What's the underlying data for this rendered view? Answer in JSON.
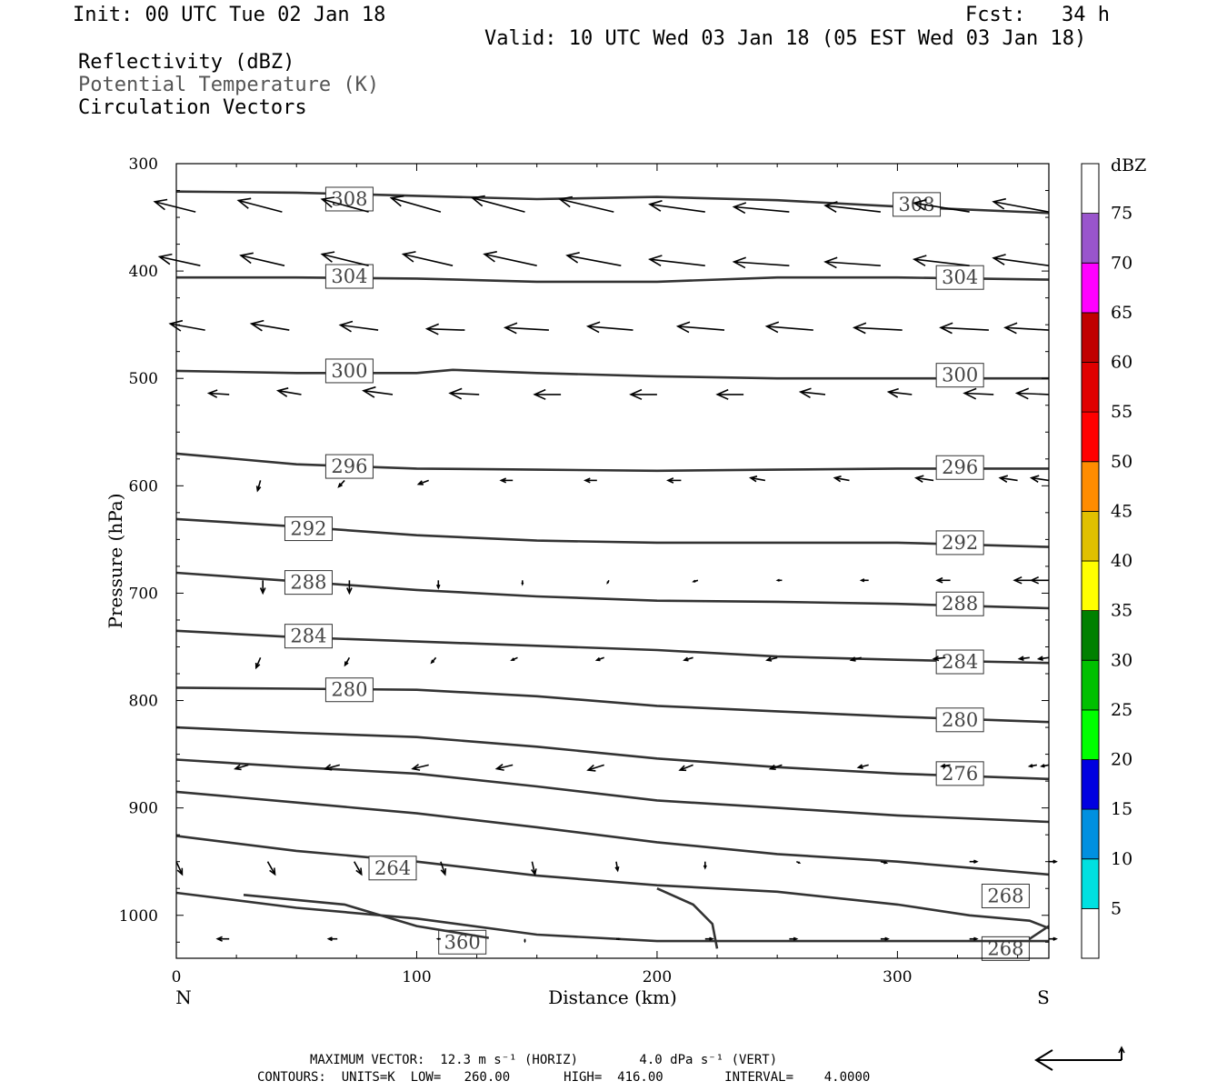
{
  "header": {
    "init": "Init: 00 UTC Tue 02 Jan 18",
    "fcst": "Fcst:   34 h",
    "valid": "Valid: 10 UTC Wed 03 Jan 18 (05 EST Wed 03 Jan 18)",
    "fields": [
      "Reflectivity (dBZ)",
      "Potential Temperature (K)",
      "Circulation Vectors"
    ]
  },
  "footer": {
    "line1": "MAXIMUM VECTOR:  12.3 m s⁻¹ (HORIZ)        4.0 dPa s⁻¹ (VERT)",
    "line2": "CONTOURS:  UNITS=K  LOW=   260.00       HIGH=  416.00        INTERVAL=    4.0000"
  },
  "chart_data": {
    "type": "line",
    "title": "",
    "xlabel": "Distance (km)",
    "ylabel": "Pressure (hPa)",
    "xlim": [
      0,
      363
    ],
    "ylim": [
      300,
      1040
    ],
    "y_inverted": true,
    "x_ticks": [
      0,
      100,
      200,
      300
    ],
    "y_ticks": [
      300,
      400,
      500,
      600,
      700,
      800,
      900,
      1000
    ],
    "x_end_labels": {
      "left": "N",
      "right": "S"
    },
    "colorbar": {
      "title": "dBZ",
      "tick_labels": [
        "5",
        "10",
        "15",
        "20",
        "25",
        "30",
        "35",
        "40",
        "45",
        "50",
        "55",
        "60",
        "65",
        "70",
        "75"
      ],
      "colors": [
        "#ffffff",
        "#00e0e0",
        "#0090e0",
        "#0000e0",
        "#00ff00",
        "#00c000",
        "#008000",
        "#ffff00",
        "#e0c000",
        "#ff8c00",
        "#ff0000",
        "#e00000",
        "#c00000",
        "#ff00ff",
        "#9955cc",
        "#ffffff"
      ]
    },
    "contours": [
      {
        "label": "308",
        "points": [
          [
            0,
            326
          ],
          [
            50,
            327
          ],
          [
            100,
            330
          ],
          [
            150,
            333
          ],
          [
            200,
            331
          ],
          [
            250,
            334
          ],
          [
            300,
            340
          ],
          [
            363,
            346
          ]
        ],
        "label_positions": [
          [
            72,
            333
          ],
          [
            308,
            338
          ]
        ]
      },
      {
        "label": "304",
        "points": [
          [
            0,
            406
          ],
          [
            50,
            406
          ],
          [
            100,
            407
          ],
          [
            150,
            410
          ],
          [
            200,
            410
          ],
          [
            250,
            406
          ],
          [
            300,
            406
          ],
          [
            363,
            408
          ]
        ],
        "label_positions": [
          [
            72,
            405
          ],
          [
            326,
            406
          ]
        ]
      },
      {
        "label": "300",
        "points": [
          [
            0,
            493
          ],
          [
            50,
            495
          ],
          [
            100,
            495
          ],
          [
            115,
            492
          ],
          [
            150,
            495
          ],
          [
            200,
            498
          ],
          [
            250,
            500
          ],
          [
            300,
            500
          ],
          [
            363,
            500
          ]
        ],
        "label_positions": [
          [
            72,
            493
          ],
          [
            326,
            497
          ]
        ]
      },
      {
        "label": "296",
        "points": [
          [
            0,
            570
          ],
          [
            50,
            580
          ],
          [
            100,
            584
          ],
          [
            150,
            585
          ],
          [
            200,
            586
          ],
          [
            250,
            585
          ],
          [
            300,
            584
          ],
          [
            363,
            584
          ]
        ],
        "label_positions": [
          [
            72,
            582
          ],
          [
            326,
            583
          ]
        ]
      },
      {
        "label": "292",
        "points": [
          [
            0,
            631
          ],
          [
            50,
            638
          ],
          [
            100,
            646
          ],
          [
            150,
            651
          ],
          [
            200,
            653
          ],
          [
            250,
            653
          ],
          [
            300,
            653
          ],
          [
            363,
            657
          ]
        ],
        "label_positions": [
          [
            55,
            640
          ],
          [
            326,
            653
          ]
        ]
      },
      {
        "label": "288",
        "points": [
          [
            0,
            681
          ],
          [
            50,
            689
          ],
          [
            100,
            697
          ],
          [
            150,
            703
          ],
          [
            200,
            707
          ],
          [
            250,
            708
          ],
          [
            300,
            710
          ],
          [
            363,
            714
          ]
        ],
        "label_positions": [
          [
            55,
            690
          ],
          [
            326,
            710
          ]
        ]
      },
      {
        "label": "284",
        "points": [
          [
            0,
            735
          ],
          [
            50,
            741
          ],
          [
            100,
            745
          ],
          [
            150,
            749
          ],
          [
            200,
            753
          ],
          [
            250,
            759
          ],
          [
            300,
            762
          ],
          [
            363,
            765
          ]
        ],
        "label_positions": [
          [
            55,
            740
          ],
          [
            326,
            764
          ]
        ]
      },
      {
        "label": "280",
        "points": [
          [
            0,
            788
          ],
          [
            50,
            789
          ],
          [
            100,
            790
          ],
          [
            150,
            796
          ],
          [
            200,
            805
          ],
          [
            250,
            810
          ],
          [
            300,
            815
          ],
          [
            363,
            820
          ]
        ],
        "label_positions": [
          [
            72,
            790
          ],
          [
            326,
            818
          ]
        ]
      },
      {
        "label": "",
        "points": [
          [
            0,
            825
          ],
          [
            50,
            830
          ],
          [
            100,
            834
          ],
          [
            150,
            843
          ],
          [
            200,
            854
          ],
          [
            250,
            862
          ],
          [
            300,
            868
          ],
          [
            363,
            873
          ]
        ],
        "label_positions": []
      },
      {
        "label": "276",
        "points": [
          [
            0,
            855
          ],
          [
            50,
            862
          ],
          [
            100,
            868
          ],
          [
            150,
            880
          ],
          [
            200,
            893
          ],
          [
            250,
            900
          ],
          [
            300,
            907
          ],
          [
            363,
            913
          ]
        ],
        "label_positions": [
          [
            326,
            868
          ]
        ]
      },
      {
        "label": "",
        "points": [
          [
            0,
            885
          ],
          [
            50,
            895
          ],
          [
            100,
            905
          ],
          [
            150,
            918
          ],
          [
            200,
            932
          ],
          [
            250,
            943
          ],
          [
            300,
            950
          ],
          [
            363,
            962
          ]
        ],
        "label_positions": []
      },
      {
        "label": "264",
        "points": [
          [
            0,
            926
          ],
          [
            50,
            940
          ],
          [
            100,
            950
          ],
          [
            150,
            963
          ],
          [
            200,
            972
          ],
          [
            250,
            978
          ],
          [
            300,
            990
          ],
          [
            330,
            1000
          ],
          [
            355,
            1005
          ],
          [
            363,
            1012
          ]
        ],
        "label_positions": [
          [
            90,
            956
          ]
        ]
      },
      {
        "label": "268",
        "points": [
          [
            345,
            1040
          ],
          [
            355,
            1022
          ],
          [
            363,
            1010
          ]
        ],
        "label_positions": [
          [
            345,
            982
          ],
          [
            345,
            1031
          ]
        ]
      },
      {
        "label": "360",
        "points": [
          [
            0,
            979
          ],
          [
            50,
            993
          ],
          [
            100,
            1003
          ],
          [
            150,
            1018
          ],
          [
            200,
            1024
          ],
          [
            250,
            1024
          ],
          [
            300,
            1024
          ],
          [
            363,
            1024
          ]
        ],
        "label_positions": [
          [
            119,
            1025
          ]
        ]
      },
      {
        "label": "",
        "points": [
          [
            28,
            981
          ],
          [
            70,
            990
          ],
          [
            100,
            1010
          ],
          [
            130,
            1021
          ]
        ],
        "label_positions": []
      },
      {
        "label": "",
        "points": [
          [
            200,
            975
          ],
          [
            215,
            990
          ],
          [
            223,
            1008
          ],
          [
            225,
            1031
          ]
        ],
        "label_positions": []
      }
    ],
    "vectors": [
      {
        "p": 345,
        "x": [
          8,
          44,
          80,
          110,
          145,
          182,
          220,
          255,
          293,
          330,
          363
        ],
        "u": [
          -28,
          -30,
          -32,
          -34,
          -36,
          -37,
          -38,
          -38,
          -38,
          -38,
          -38
        ],
        "w": [
          0.8,
          0.9,
          1.0,
          1.1,
          1.1,
          1.0,
          0.6,
          0.4,
          0.5,
          0.7,
          0.8
        ]
      },
      {
        "p": 395,
        "x": [
          10,
          45,
          80,
          115,
          150,
          185,
          220,
          255,
          293,
          330,
          363
        ],
        "u": [
          -28,
          -30,
          -32,
          -34,
          -36,
          -37,
          -38,
          -38,
          -38,
          -38,
          -38
        ],
        "w": [
          0.7,
          0.8,
          0.9,
          0.9,
          0.9,
          0.8,
          0.5,
          0.3,
          0.3,
          0.5,
          0.6
        ]
      },
      {
        "p": 455,
        "x": [
          12,
          47,
          84,
          120,
          155,
          190,
          228,
          265,
          302,
          338,
          363
        ],
        "u": [
          -24,
          -26,
          -26,
          -26,
          -30,
          -31,
          -32,
          -32,
          -33,
          -33,
          -30
        ],
        "w": [
          0.5,
          0.5,
          0.4,
          0.1,
          0.2,
          0.3,
          0.3,
          0.3,
          0.2,
          0.2,
          0.2
        ]
      },
      {
        "p": 515,
        "x": [
          22,
          52,
          90,
          126,
          160,
          200,
          236,
          270,
          306,
          340,
          363
        ],
        "u": [
          -14,
          -16,
          -20,
          -20,
          -18,
          -18,
          -18,
          -17,
          -16,
          -20,
          -22
        ],
        "w": [
          0.1,
          0.3,
          0.3,
          0.1,
          0.0,
          0.0,
          0.0,
          0.2,
          0.2,
          0.1,
          0.1
        ]
      },
      {
        "p": 595,
        "x": [
          35,
          70,
          105,
          140,
          175,
          210,
          245,
          280,
          315,
          350,
          363
        ],
        "u": [
          -2,
          -4,
          -7,
          -8,
          -8,
          -9,
          -10,
          -10,
          -12,
          -12,
          -12
        ],
        "w": [
          -0.8,
          -0.5,
          -0.3,
          0.0,
          0.0,
          0.0,
          0.2,
          0.2,
          0.2,
          0.2,
          0.2
        ]
      },
      {
        "p": 688,
        "x": [
          36,
          72,
          109,
          144,
          180,
          217,
          252,
          288,
          322,
          356,
          363
        ],
        "u": [
          0,
          0,
          0,
          0,
          -1,
          -3,
          -3,
          -5,
          -9,
          -12,
          -12
        ],
        "w": [
          -1.0,
          -1.0,
          -0.6,
          -0.3,
          -0.2,
          -0.1,
          0.0,
          0.0,
          0.0,
          0.0,
          0.0
        ]
      },
      {
        "p": 760,
        "x": [
          35,
          72,
          108,
          142,
          178,
          215,
          250,
          285,
          320,
          355,
          363
        ],
        "u": [
          -3,
          -3,
          -3,
          -4,
          -5,
          -6,
          -7,
          -7,
          -8,
          -7,
          -7
        ],
        "w": [
          -0.8,
          -0.6,
          -0.4,
          -0.2,
          -0.2,
          -0.2,
          -0.2,
          -0.2,
          -0.1,
          -0.1,
          -0.1
        ]
      },
      {
        "p": 860,
        "x": [
          30,
          68,
          105,
          140,
          178,
          215,
          252,
          288,
          322,
          358,
          363
        ],
        "u": [
          -9,
          -10,
          -11,
          -11,
          -11,
          -9,
          -8,
          -7,
          -6,
          -5,
          -5
        ],
        "w": [
          -0.3,
          -0.3,
          -0.3,
          -0.3,
          -0.4,
          -0.4,
          -0.3,
          -0.2,
          -0.1,
          -0.1,
          -0.1
        ]
      },
      {
        "p": 950,
        "x": [
          0,
          38,
          74,
          110,
          148,
          183,
          220,
          258,
          293,
          330,
          363
        ],
        "u": [
          4,
          5,
          5,
          3,
          2,
          1,
          0,
          2,
          4,
          5,
          5
        ],
        "w": [
          -1.0,
          -1.0,
          -1.0,
          -1.0,
          -1.0,
          -0.7,
          -0.5,
          -0.1,
          -0.1,
          0.0,
          0.0
        ]
      },
      {
        "p": 1022,
        "x": [
          22,
          67,
          110,
          145,
          183,
          220,
          255,
          293,
          330,
          363
        ],
        "u": [
          -8,
          -6,
          -2,
          0,
          2,
          5,
          5,
          5,
          5,
          5
        ],
        "w": [
          0.0,
          0.0,
          0.0,
          -0.2,
          0.0,
          0.0,
          0.0,
          0.0,
          0.0,
          0.0
        ]
      }
    ]
  }
}
